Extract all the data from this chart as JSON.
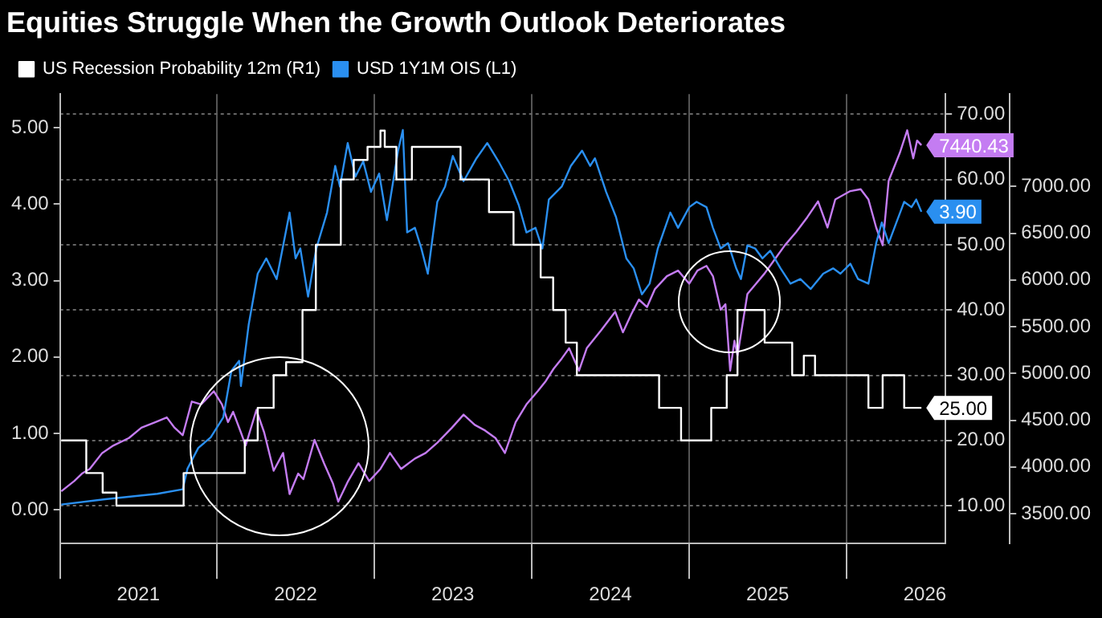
{
  "chart_data": {
    "type": "line",
    "title": "Equities Struggle When the Growth Outlook Deteriorates",
    "legend": "top",
    "grid": true,
    "xlim": [
      "2021-01-01",
      "2026-08-19"
    ],
    "xticks": [
      {
        "value": "2021-01-01",
        "label": null
      },
      {
        "value": "2021-07-02",
        "label": "2021"
      },
      {
        "value": "2022-01-01",
        "label": null
      },
      {
        "value": "2022-07-02",
        "label": "2022"
      },
      {
        "value": "2023-01-01",
        "label": null
      },
      {
        "value": "2023-07-02",
        "label": "2023"
      },
      {
        "value": "2024-01-01",
        "label": null
      },
      {
        "value": "2024-07-02",
        "label": "2024"
      },
      {
        "value": "2025-01-01",
        "label": null
      },
      {
        "value": "2025-07-02",
        "label": "2025"
      },
      {
        "value": "2026-01-01",
        "label": null
      },
      {
        "value": "2026-07-02",
        "label": "2026"
      }
    ],
    "ylim": [
      -0.44,
      5.44
    ],
    "yticks": [
      {
        "value": 0,
        "label": "0.00"
      },
      {
        "value": 1,
        "label": "1.00"
      },
      {
        "value": 2,
        "label": "2.00"
      },
      {
        "value": 3,
        "label": "3.00"
      },
      {
        "value": 4,
        "label": "4.00"
      },
      {
        "value": 5,
        "label": "5.00"
      }
    ],
    "y2lim": [
      4.2,
      73.1
    ],
    "y2ticks": [
      {
        "value": 10,
        "label": "10.00"
      },
      {
        "value": 20,
        "label": "20.00"
      },
      {
        "value": 30,
        "label": "30.00"
      },
      {
        "value": 40,
        "label": "40.00"
      },
      {
        "value": 50,
        "label": "50.00"
      },
      {
        "value": 60,
        "label": "60.00"
      },
      {
        "value": 70,
        "label": "70.00"
      }
    ],
    "y3lim": [
      3182,
      7987
    ],
    "y3ticks": [
      {
        "value": 3500,
        "label": "3500.00"
      },
      {
        "value": 4000,
        "label": "4000.00"
      },
      {
        "value": 4500,
        "label": "4500.00"
      },
      {
        "value": 5000,
        "label": "5000.00"
      },
      {
        "value": 5500,
        "label": "5500.00"
      },
      {
        "value": 6000,
        "label": "6000.00"
      },
      {
        "value": 6500,
        "label": "6500.00"
      },
      {
        "value": 7000,
        "label": "7000.00"
      }
    ],
    "series": [
      {
        "name": "US Recession Probability 12m (R1)",
        "type": "step",
        "axis": "y2",
        "color": "#ffffff",
        "x": [
          "2021-01-04",
          "2021-03-03",
          "2021-04-10",
          "2021-05-12",
          "2021-10-15",
          "2022-03-06",
          "2022-04-05",
          "2022-05-12",
          "2022-06-10",
          "2022-07-18",
          "2022-08-18",
          "2022-10-15",
          "2022-11-14",
          "2022-12-16",
          "2023-01-15",
          "2023-01-25",
          "2023-02-21",
          "2023-03-29",
          "2023-07-20",
          "2023-09-24",
          "2023-11-20",
          "2024-01-22",
          "2024-02-20",
          "2024-03-20",
          "2024-04-15",
          "2024-10-23",
          "2024-12-13",
          "2025-02-21",
          "2025-03-29",
          "2025-04-23",
          "2025-06-25",
          "2025-08-28",
          "2025-09-24",
          "2025-10-20",
          "2026-02-21",
          "2026-03-26",
          "2026-05-15",
          "2026-06-24"
        ],
        "values": [
          20,
          15,
          12,
          10,
          15,
          20,
          25,
          30,
          32,
          40,
          50,
          60,
          63,
          65,
          67.5,
          65,
          60,
          65,
          60,
          55,
          50,
          45,
          40,
          35,
          30,
          25,
          20,
          25,
          30,
          40,
          35,
          30,
          33,
          30,
          25,
          30,
          25,
          25
        ],
        "value_labels": [
          null,
          null,
          null,
          null,
          null,
          null,
          null,
          null,
          null,
          null,
          null,
          null,
          null,
          null,
          null,
          null,
          null,
          null,
          null,
          null,
          null,
          null,
          null,
          null,
          null,
          null,
          null,
          null,
          null,
          null,
          null,
          null,
          null,
          null,
          null,
          null,
          null,
          "25.00"
        ]
      },
      {
        "name": "USD 1Y1M OIS (L1)",
        "type": "line",
        "axis": "y",
        "color": "#2a8ff0",
        "x": [
          "2021-01-04",
          "2021-04-16",
          "2021-08-15",
          "2021-10-13",
          "2021-10-24",
          "2021-11-18",
          "2021-12-17",
          "2022-01-15",
          "2022-02-03",
          "2022-02-21",
          "2022-02-25",
          "2022-03-15",
          "2022-04-05",
          "2022-04-25",
          "2022-05-19",
          "2022-06-18",
          "2022-07-02",
          "2022-07-13",
          "2022-07-31",
          "2022-08-19",
          "2022-09-13",
          "2022-10-02",
          "2022-10-13",
          "2022-10-31",
          "2022-11-18",
          "2022-12-06",
          "2022-12-24",
          "2023-01-12",
          "2023-01-30",
          "2023-02-25",
          "2023-03-08",
          "2023-03-18",
          "2023-04-05",
          "2023-04-20",
          "2023-05-05",
          "2023-05-27",
          "2023-06-14",
          "2023-07-02",
          "2023-07-27",
          "2023-08-26",
          "2023-09-20",
          "2023-10-16",
          "2023-11-10",
          "2023-12-02",
          "2023-12-20",
          "2024-01-10",
          "2024-01-26",
          "2024-02-10",
          "2024-03-11",
          "2024-04-01",
          "2024-04-27",
          "2024-05-16",
          "2024-05-27",
          "2024-06-22",
          "2024-07-15",
          "2024-08-08",
          "2024-08-25",
          "2024-09-13",
          "2024-10-01",
          "2024-10-20",
          "2024-11-18",
          "2024-12-06",
          "2025-01-01",
          "2025-01-18",
          "2025-02-10",
          "2025-02-25",
          "2025-03-15",
          "2025-04-01",
          "2025-04-20",
          "2025-05-01",
          "2025-05-16",
          "2025-06-03",
          "2025-06-20",
          "2025-07-08",
          "2025-08-01",
          "2025-08-24",
          "2025-09-16",
          "2025-10-10",
          "2025-11-08",
          "2025-12-01",
          "2025-12-18",
          "2026-01-10",
          "2026-01-28",
          "2026-02-21",
          "2026-03-11",
          "2026-03-24",
          "2026-04-09",
          "2026-04-27",
          "2026-05-15",
          "2026-06-01",
          "2026-06-12",
          "2026-06-24"
        ],
        "values": [
          0.07,
          0.14,
          0.21,
          0.27,
          0.54,
          0.81,
          0.95,
          1.21,
          1.82,
          1.95,
          1.62,
          2.42,
          3.09,
          3.29,
          3.02,
          3.89,
          3.29,
          3.42,
          2.79,
          3.42,
          3.89,
          4.5,
          4.23,
          4.8,
          4.36,
          4.56,
          4.16,
          4.4,
          3.79,
          4.7,
          4.97,
          3.63,
          3.69,
          3.42,
          3.09,
          4.03,
          4.23,
          4.63,
          4.3,
          4.6,
          4.8,
          4.56,
          4.3,
          3.99,
          3.63,
          3.69,
          3.42,
          4.06,
          4.23,
          4.5,
          4.7,
          4.5,
          4.6,
          4.16,
          3.83,
          3.29,
          3.16,
          2.82,
          2.96,
          3.42,
          3.89,
          3.69,
          3.96,
          4.03,
          3.96,
          3.69,
          3.42,
          3.49,
          3.16,
          3.02,
          3.46,
          3.42,
          3.29,
          3.39,
          3.16,
          2.96,
          3.02,
          2.89,
          3.09,
          3.16,
          3.09,
          3.22,
          3.02,
          2.96,
          3.49,
          3.76,
          3.49,
          3.76,
          4.03,
          3.96,
          4.06,
          3.9
        ],
        "value_labels": [
          null,
          null,
          null,
          null,
          null,
          null,
          null,
          null,
          null,
          null,
          null,
          null,
          null,
          null,
          null,
          null,
          null,
          null,
          null,
          null,
          null,
          null,
          null,
          null,
          null,
          null,
          null,
          null,
          null,
          null,
          null,
          null,
          null,
          null,
          null,
          null,
          null,
          null,
          null,
          null,
          null,
          null,
          null,
          null,
          null,
          null,
          null,
          null,
          null,
          null,
          null,
          null,
          null,
          null,
          null,
          null,
          null,
          null,
          null,
          null,
          null,
          null,
          null,
          null,
          null,
          null,
          null,
          null,
          null,
          null,
          null,
          null,
          null,
          null,
          null,
          null,
          null,
          null,
          null,
          null,
          null,
          null,
          null,
          null,
          null,
          null,
          null,
          null,
          null,
          null,
          null,
          "3.90"
        ]
      },
      {
        "type": "line",
        "axis": "y3",
        "color": "#c47cf2",
        "x": [
          "2021-01-04",
          "2021-02-03",
          "2021-02-21",
          "2021-03-11",
          "2021-04-09",
          "2021-05-05",
          "2021-06-10",
          "2021-07-09",
          "2021-08-11",
          "2021-09-06",
          "2021-09-24",
          "2021-10-13",
          "2021-11-03",
          "2021-11-25",
          "2021-12-24",
          "2022-01-12",
          "2022-01-26",
          "2022-02-07",
          "2022-02-25",
          "2022-03-08",
          "2022-04-02",
          "2022-04-20",
          "2022-05-12",
          "2022-06-03",
          "2022-06-18",
          "2022-07-08",
          "2022-07-20",
          "2022-08-15",
          "2022-09-06",
          "2022-09-27",
          "2022-10-09",
          "2022-11-01",
          "2022-11-25",
          "2022-12-20",
          "2023-01-15",
          "2023-02-06",
          "2023-03-04",
          "2023-04-05",
          "2023-04-30",
          "2023-05-27",
          "2023-06-30",
          "2023-07-27",
          "2023-08-22",
          "2023-09-15",
          "2023-10-09",
          "2023-10-31",
          "2023-11-25",
          "2023-12-20",
          "2024-01-15",
          "2024-02-03",
          "2024-02-21",
          "2024-03-11",
          "2024-03-28",
          "2024-04-20",
          "2024-05-08",
          "2024-06-10",
          "2024-07-13",
          "2024-07-31",
          "2024-08-19",
          "2024-09-06",
          "2024-09-25",
          "2024-10-13",
          "2024-11-10",
          "2024-12-06",
          "2025-01-01",
          "2025-01-20",
          "2025-02-10",
          "2025-02-25",
          "2025-03-15",
          "2025-03-26",
          "2025-04-06",
          "2025-04-16",
          "2025-04-23",
          "2025-05-16",
          "2025-06-05",
          "2025-06-25",
          "2025-07-20",
          "2025-08-11",
          "2025-09-06",
          "2025-10-02",
          "2025-10-27",
          "2025-11-18",
          "2025-12-06",
          "2026-01-10",
          "2026-02-03",
          "2026-02-21",
          "2026-03-11",
          "2026-03-26",
          "2026-04-09",
          "2026-05-05",
          "2026-05-22",
          "2026-06-05",
          "2026-06-14",
          "2026-06-24"
        ],
        "values": [
          3740,
          3850,
          3930,
          3980,
          4150,
          4230,
          4310,
          4420,
          4480,
          4530,
          4420,
          4340,
          4700,
          4670,
          4810,
          4670,
          4480,
          4590,
          4370,
          4230,
          4610,
          4370,
          3960,
          4150,
          3710,
          3930,
          3870,
          4290,
          4040,
          3820,
          3630,
          3850,
          4040,
          3850,
          3980,
          4150,
          3980,
          4090,
          4150,
          4260,
          4420,
          4560,
          4450,
          4390,
          4310,
          4150,
          4480,
          4670,
          4810,
          4920,
          5050,
          5160,
          5270,
          5030,
          5270,
          5460,
          5660,
          5440,
          5630,
          5790,
          5710,
          5900,
          6040,
          6100,
          5960,
          6100,
          6150,
          6040,
          5680,
          5740,
          5030,
          5350,
          5190,
          5850,
          5960,
          6070,
          6230,
          6370,
          6510,
          6670,
          6840,
          6560,
          6860,
          6950,
          6970,
          6860,
          6560,
          6370,
          7060,
          7360,
          7600,
          7300,
          7490,
          7440.43
        ],
        "value_labels": [
          null,
          null,
          null,
          null,
          null,
          null,
          null,
          null,
          null,
          null,
          null,
          null,
          null,
          null,
          null,
          null,
          null,
          null,
          null,
          null,
          null,
          null,
          null,
          null,
          null,
          null,
          null,
          null,
          null,
          null,
          null,
          null,
          null,
          null,
          null,
          null,
          null,
          null,
          null,
          null,
          null,
          null,
          null,
          null,
          null,
          null,
          null,
          null,
          null,
          null,
          null,
          null,
          null,
          null,
          null,
          null,
          null,
          null,
          null,
          null,
          null,
          null,
          null,
          null,
          null,
          null,
          null,
          null,
          null,
          null,
          null,
          null,
          null,
          null,
          null,
          null,
          null,
          null,
          null,
          null,
          null,
          null,
          null,
          null,
          null,
          null,
          null,
          null,
          null,
          null,
          null,
          null,
          null,
          "7440.43"
        ]
      }
    ]
  }
}
